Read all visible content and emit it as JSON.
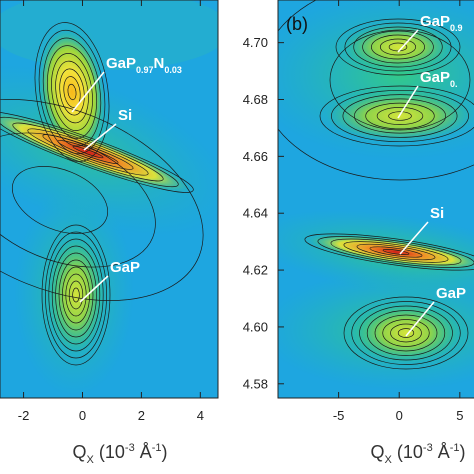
{
  "colors": {
    "background_map": "#1ea6e0",
    "leader_line": "#ffffff",
    "label_text": "#ffffff",
    "contour": "#1a1a1a"
  },
  "chart_data": [
    {
      "type": "heatmap",
      "panel": "a",
      "panel_label": "",
      "xlim": [
        -2.8,
        4.6
      ],
      "x_ticks": [
        -2,
        0,
        2,
        4
      ],
      "x_tick_labels": [
        "-2",
        "0",
        "2",
        "4"
      ],
      "xlabel": {
        "main": "Q",
        "sub": "X",
        "unit": "(10",
        "exp": "-3",
        "unit_tail": " Å",
        "exp2": "-1",
        "close": ")"
      },
      "peaks": [
        {
          "name": "GaP0.97N0.03",
          "base": "GaP",
          "sub1": "0.97",
          "mid": "N",
          "sub2": "0.03",
          "x": -0.2,
          "y": 4.687,
          "color": "#f2cc1f"
        },
        {
          "name": "Si",
          "base": "Si",
          "x": 0.1,
          "y": 4.667,
          "color": "#d62020"
        },
        {
          "name": "GaP",
          "base": "GaP",
          "x": 0.0,
          "y": 4.611,
          "color": "#b7d93b"
        }
      ]
    },
    {
      "type": "heatmap",
      "panel": "b",
      "panel_label": "(b)",
      "xlim": [
        -10,
        6.5
      ],
      "ylim": [
        4.575,
        4.715
      ],
      "y_ticks": [
        4.58,
        4.6,
        4.62,
        4.64,
        4.66,
        4.68,
        4.7
      ],
      "y_tick_labels": [
        "4.58",
        "4.60",
        "4.62",
        "4.64",
        "4.66",
        "4.68",
        "4.70"
      ],
      "x_ticks": [
        -5,
        0,
        5
      ],
      "x_tick_labels": [
        "-5",
        "0",
        "5"
      ],
      "xlabel": {
        "main": "Q",
        "sub": "X",
        "unit": "(10",
        "exp": "-3",
        "unit_tail": " Å",
        "exp2": "-1",
        "close": ")"
      },
      "peaks": [
        {
          "name": "GaP0.9",
          "base": "GaP",
          "sub1": "0.9",
          "x": 0.2,
          "y": 4.7,
          "color": "#bfe03a"
        },
        {
          "name": "GaP0.",
          "base": "GaP",
          "sub1": "0.",
          "x": 0.2,
          "y": 4.678,
          "color": "#9ed23a"
        },
        {
          "name": "Si",
          "base": "Si",
          "x": -0.5,
          "y": 4.627,
          "color": "#d62020"
        },
        {
          "name": "GaP",
          "base": "GaP",
          "x": 0.5,
          "y": 4.596,
          "color": "#b7d93b"
        }
      ]
    }
  ]
}
